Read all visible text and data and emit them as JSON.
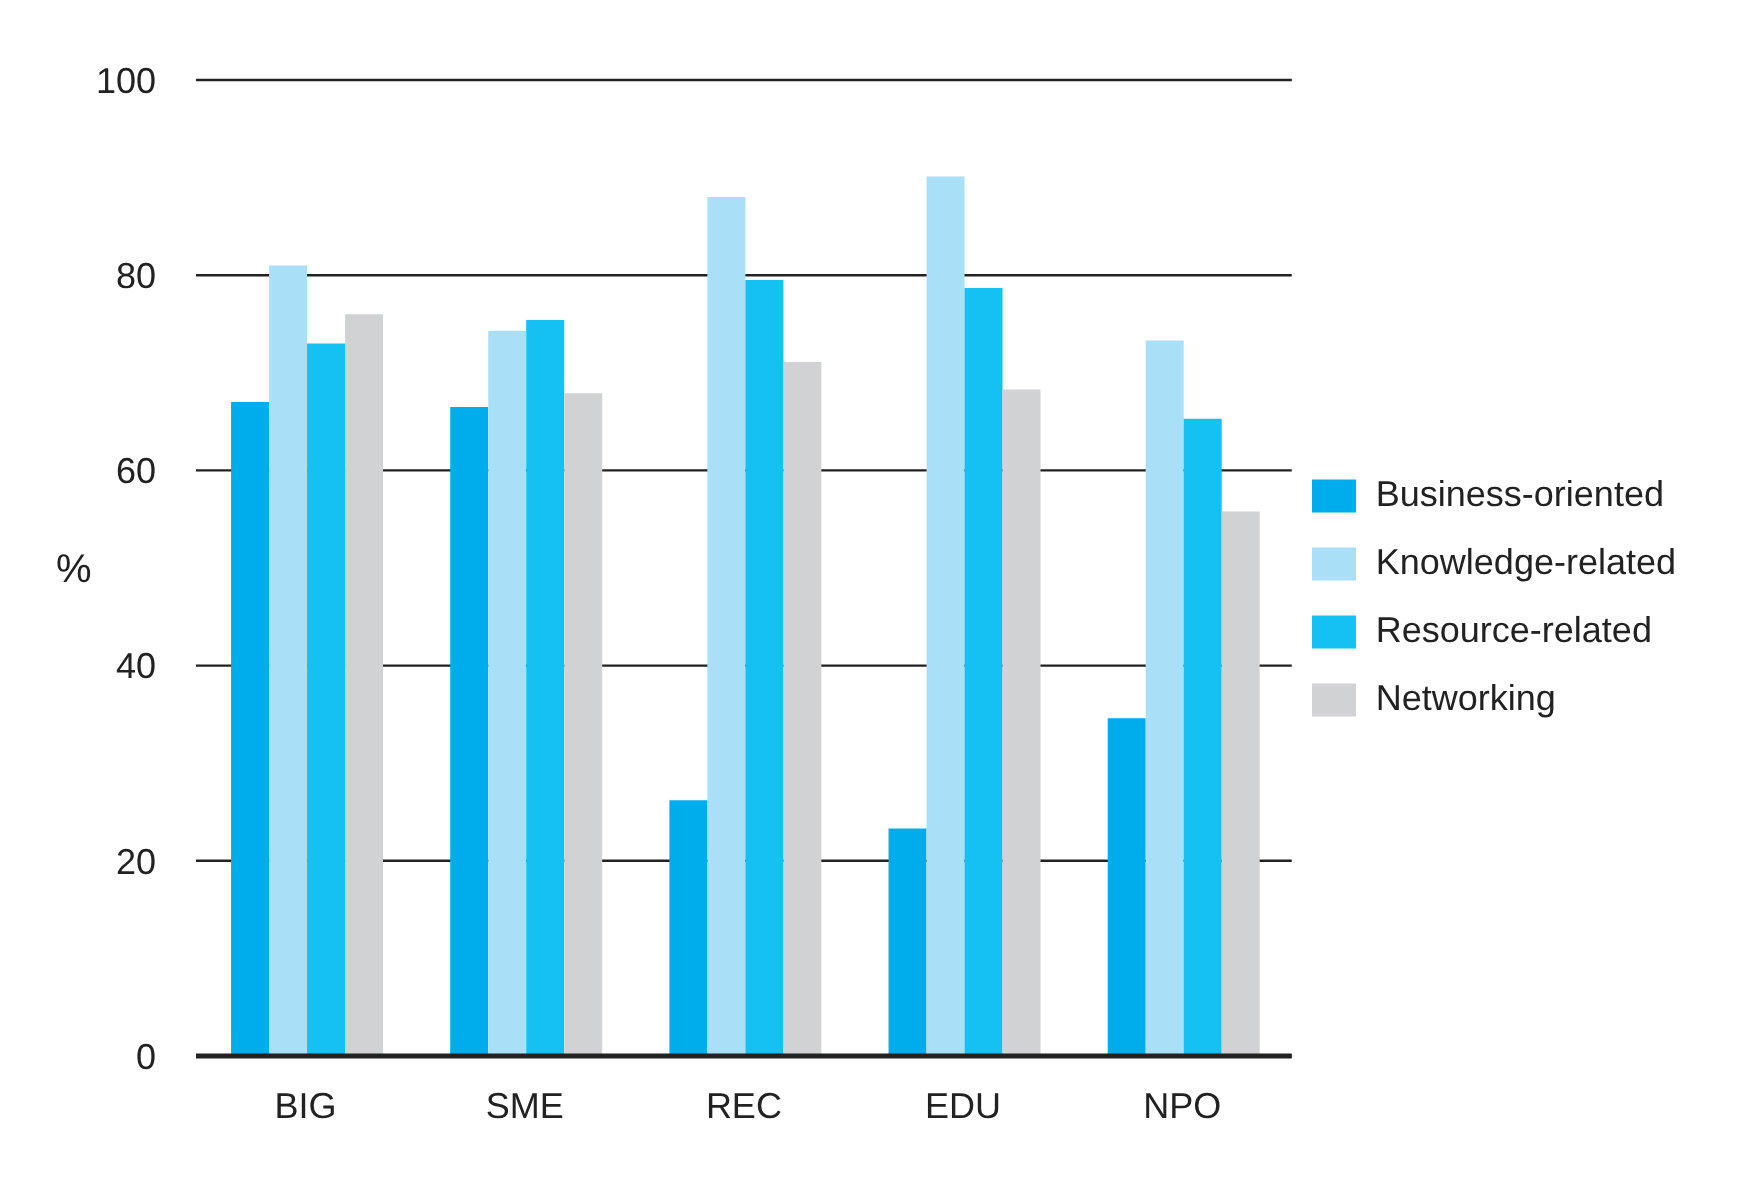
{
  "chart_data": {
    "type": "bar",
    "ylabel": "%",
    "categories": [
      "BIG",
      "SME",
      "REC",
      "EDU",
      "NPO"
    ],
    "series": [
      {
        "name": "Business-oriented",
        "color": "#00adec",
        "values": [
          67,
          66.5,
          26.2,
          23.3,
          34.6
        ]
      },
      {
        "name": "Knowledge-related",
        "color": "#aadff8",
        "values": [
          81,
          74.3,
          88,
          90.1,
          73.3
        ]
      },
      {
        "name": "Resource-related",
        "color": "#15c0f2",
        "values": [
          73,
          75.4,
          79.5,
          78.7,
          65.3
        ]
      },
      {
        "name": "Networking",
        "color": "#d1d2d4",
        "values": [
          76,
          67.9,
          71.1,
          68.3,
          55.8
        ]
      }
    ],
    "ylim": [
      0,
      100
    ],
    "yticks": [
      0,
      20,
      40,
      60,
      80,
      100
    ],
    "grid": "y",
    "legend": "right"
  }
}
